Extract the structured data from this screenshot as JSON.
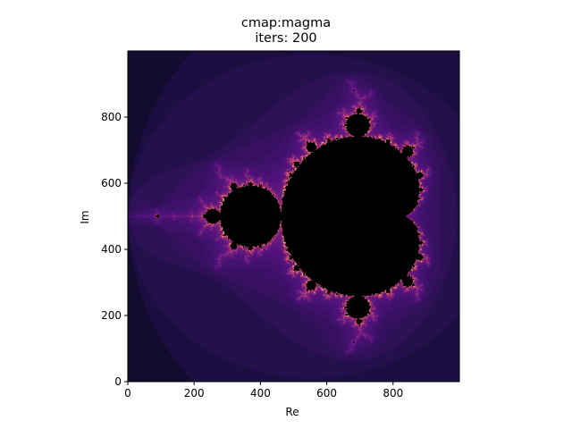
{
  "chart_data": {
    "type": "heatmap",
    "title_lines": [
      "cmap:magma",
      "iters: 200"
    ],
    "xlabel": "Re",
    "ylabel": "Im",
    "xlim": [
      0,
      1000
    ],
    "ylim": [
      0,
      1000
    ],
    "x_ticks": [
      0,
      200,
      400,
      600,
      800
    ],
    "y_ticks": [
      0,
      200,
      400,
      600,
      800
    ],
    "colormap": "magma",
    "max_iterations": 200,
    "fractal": "mandelbrot",
    "complex_region": {
      "re_min": -2.0,
      "re_max": 0.7,
      "im_min": -1.35,
      "im_max": 1.35
    },
    "grid": false,
    "colors": {
      "background": "#000004",
      "set_interior": "#000000",
      "low": "#1b0c41",
      "mid": "#721f81",
      "high": "#f1605d",
      "peak": "#fcfdbf"
    }
  }
}
